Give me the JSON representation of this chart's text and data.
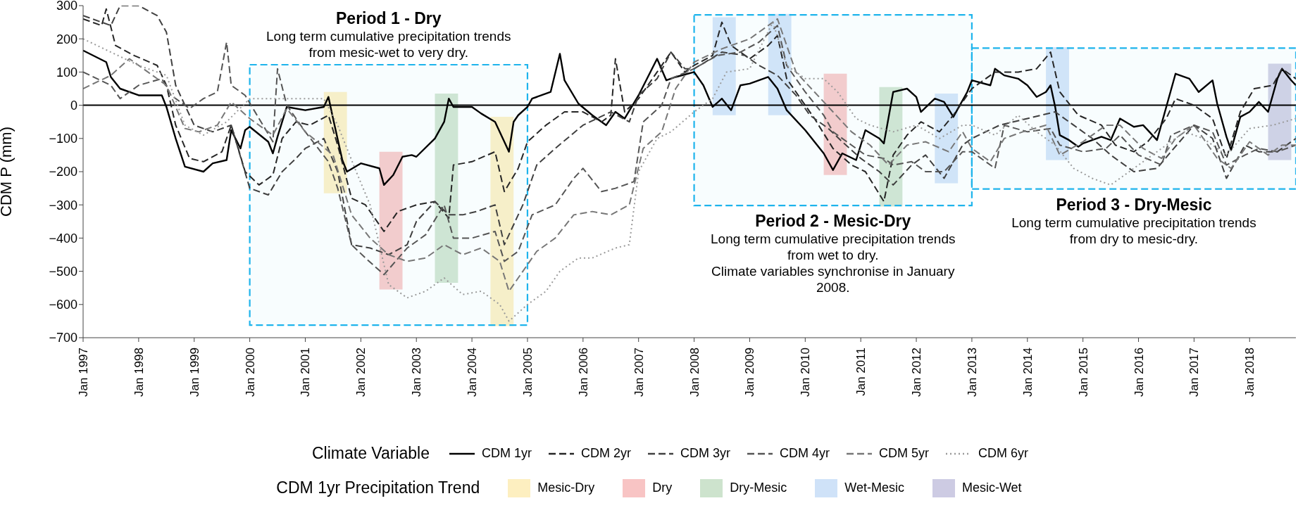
{
  "chart_data": {
    "type": "line",
    "ylabel": "CDM P (mm)",
    "legend_title": "Climate Variable",
    "legend": "bottom",
    "grid": false,
    "xlim": [
      "1997-01",
      "2018-11"
    ],
    "ylim": [
      -700,
      300
    ],
    "yticks": [
      -700,
      -600,
      -500,
      -400,
      -300,
      -200,
      -100,
      0,
      100,
      200,
      300
    ],
    "xticks": [
      {
        "value": "1997-01",
        "label": "Jan 1997"
      },
      {
        "value": "1998-01",
        "label": "Jan 1998"
      },
      {
        "value": "1999-01",
        "label": "Jan 1999"
      },
      {
        "value": "2000-01",
        "label": "Jan 2000"
      },
      {
        "value": "2001-01",
        "label": "Jan 2001"
      },
      {
        "value": "2002-01",
        "label": "Jan 2002"
      },
      {
        "value": "2003-01",
        "label": "Jan 2003"
      },
      {
        "value": "2004-01",
        "label": "Jan 2004"
      },
      {
        "value": "2005-01",
        "label": "Jan 2005"
      },
      {
        "value": "2006-01",
        "label": "Jan 2006"
      },
      {
        "value": "2007-01",
        "label": "Jan 2007"
      },
      {
        "value": "2008-01",
        "label": "Jan 2008"
      },
      {
        "value": "2009-01",
        "label": "Jan 2009"
      },
      {
        "value": "2010-01",
        "label": "Jan 2010"
      },
      {
        "value": "2011-01",
        "label": "Jan 2011"
      },
      {
        "value": "2012-01",
        "label": "Jan 2012"
      },
      {
        "value": "2013-01",
        "label": "Jan 2013"
      },
      {
        "value": "2014-01",
        "label": "Jan 2014"
      },
      {
        "value": "2015-01",
        "label": "Jan 2015"
      },
      {
        "value": "2016-01",
        "label": "Jan 2016"
      },
      {
        "value": "2017-01",
        "label": "Jan 2017"
      },
      {
        "value": "2018-01",
        "label": "Jan 2018"
      }
    ],
    "series": [
      {
        "name": "CDM 1yr",
        "color": "#000000",
        "line_style": "solid",
        "x": [
          "1997-01",
          "1997-06",
          "1997-07",
          "1997-09",
          "1998-01",
          "1998-06",
          "1998-07",
          "1998-09",
          "1998-11",
          "1999-03",
          "1999-05",
          "1999-08",
          "1999-09",
          "1999-11",
          "1999-12",
          "2000-01",
          "2000-05",
          "2000-06",
          "2000-07",
          "2000-09",
          "2001-01",
          "2001-05",
          "2001-06",
          "2001-07",
          "2001-09",
          "2001-10",
          "2002-01",
          "2002-05",
          "2002-06",
          "2002-08",
          "2002-10",
          "2002-12",
          "2003-01",
          "2003-05",
          "2003-07",
          "2003-08",
          "2003-09",
          "2004-01",
          "2004-03",
          "2004-06",
          "2004-08",
          "2004-09",
          "2004-10",
          "2004-11",
          "2005-01",
          "2005-02",
          "2005-06",
          "2005-08",
          "2005-09",
          "2005-12",
          "2006-03",
          "2006-06",
          "2006-08",
          "2006-10",
          "2007-01",
          "2007-05",
          "2007-07",
          "2007-09",
          "2008-01",
          "2008-03",
          "2008-05",
          "2008-07",
          "2008-09",
          "2008-11",
          "2009-01",
          "2009-05",
          "2009-07",
          "2009-09",
          "2010-01",
          "2010-05",
          "2010-07",
          "2010-09",
          "2010-12",
          "2011-02",
          "2011-05",
          "2011-06",
          "2011-08",
          "2011-11",
          "2012-01",
          "2012-02",
          "2012-05",
          "2012-07",
          "2012-09",
          "2012-12",
          "2013-01",
          "2013-05",
          "2013-06",
          "2013-08",
          "2013-11",
          "2014-01",
          "2014-03",
          "2014-05",
          "2014-06",
          "2014-07",
          "2014-08",
          "2014-10",
          "2014-12",
          "2015-01",
          "2015-05",
          "2015-07",
          "2015-09",
          "2015-12",
          "2016-02",
          "2016-05",
          "2016-07",
          "2016-09",
          "2016-12",
          "2017-02",
          "2017-05",
          "2017-06",
          "2017-08",
          "2017-09",
          "2017-11",
          "2018-01",
          "2018-03",
          "2018-05",
          "2018-07",
          "2018-08",
          "2018-10",
          "2018-11"
        ],
        "values": [
          165,
          130,
          85,
          50,
          30,
          30,
          -5,
          -100,
          -185,
          -200,
          -175,
          -165,
          -75,
          -130,
          -75,
          -65,
          -110,
          -145,
          -95,
          -5,
          -15,
          -5,
          25,
          -40,
          -165,
          -200,
          -175,
          -190,
          -240,
          -210,
          -155,
          -150,
          -155,
          -100,
          -50,
          20,
          -5,
          -5,
          -25,
          -50,
          -110,
          -140,
          -50,
          -30,
          -5,
          20,
          40,
          155,
          75,
          5,
          -30,
          -60,
          -20,
          -40,
          30,
          140,
          75,
          85,
          100,
          60,
          -5,
          20,
          -15,
          60,
          65,
          85,
          50,
          -15,
          -75,
          -145,
          -195,
          -145,
          -165,
          -75,
          -100,
          -115,
          40,
          50,
          25,
          -20,
          20,
          10,
          -35,
          40,
          75,
          60,
          110,
          90,
          80,
          60,
          25,
          40,
          60,
          -5,
          -90,
          -105,
          -125,
          -115,
          -95,
          -105,
          -40,
          -65,
          -60,
          -105,
          -5,
          95,
          80,
          40,
          75,
          5,
          -95,
          -135,
          -35,
          -20,
          10,
          -20,
          80,
          110,
          75,
          60
        ]
      },
      {
        "name": "CDM 2yr",
        "color": "#262626",
        "line_style": "dashed",
        "x": [
          "1997-01",
          "1997-05",
          "1997-06",
          "1997-08",
          "1997-12",
          "1998-05",
          "1998-07",
          "1998-09",
          "1998-12",
          "1999-03",
          "1999-07",
          "1999-09",
          "1999-12",
          "2000-03",
          "2000-06",
          "2000-08",
          "2000-11",
          "2001-02",
          "2001-06",
          "2001-08",
          "2001-11",
          "2002-02",
          "2002-06",
          "2002-09",
          "2003-01",
          "2003-05",
          "2003-08",
          "2003-09",
          "2004-01",
          "2004-06",
          "2004-08",
          "2004-11",
          "2005-01",
          "2005-05",
          "2005-09",
          "2006-01",
          "2006-05",
          "2006-07",
          "2006-08",
          "2006-10",
          "2007-01",
          "2007-05",
          "2007-08",
          "2007-11",
          "2008-01",
          "2008-05",
          "2008-07",
          "2008-09",
          "2009-01",
          "2009-05",
          "2009-07",
          "2009-09",
          "2009-12",
          "2010-03",
          "2010-07",
          "2010-11",
          "2011-02",
          "2011-06",
          "2011-08",
          "2011-11",
          "2012-02",
          "2012-06",
          "2012-09",
          "2013-01",
          "2013-06",
          "2013-11",
          "2014-03",
          "2014-06",
          "2014-08",
          "2014-12",
          "2015-05",
          "2015-08",
          "2015-12",
          "2016-03",
          "2016-07",
          "2016-09",
          "2017-01",
          "2017-05",
          "2017-08",
          "2017-11",
          "2018-02",
          "2018-06",
          "2018-08",
          "2018-11"
        ],
        "values": [
          260,
          240,
          290,
          180,
          150,
          120,
          60,
          -60,
          -160,
          -170,
          -140,
          -60,
          -200,
          -240,
          -210,
          -100,
          -50,
          -60,
          -30,
          -120,
          -280,
          -300,
          -380,
          -320,
          -300,
          -290,
          -340,
          -180,
          -170,
          -140,
          -260,
          -190,
          -110,
          -60,
          -20,
          -20,
          -50,
          -30,
          140,
          -20,
          20,
          100,
          160,
          100,
          120,
          150,
          250,
          180,
          140,
          180,
          210,
          80,
          20,
          -40,
          -130,
          -180,
          -200,
          -290,
          -150,
          -90,
          -50,
          -80,
          -30,
          50,
          100,
          100,
          110,
          160,
          40,
          -30,
          -60,
          -120,
          -140,
          -110,
          -40,
          20,
          0,
          -40,
          -160,
          -20,
          50,
          60,
          110,
          80
        ]
      },
      {
        "name": "CDM 3yr",
        "color": "#404040",
        "line_style": "dashed",
        "x": [
          "1997-01",
          "1997-07",
          "1997-09",
          "1998-01",
          "1998-05",
          "1998-07",
          "1998-09",
          "1999-01",
          "1999-05",
          "1999-09",
          "2000-01",
          "2000-05",
          "2000-08",
          "2000-11",
          "2001-01",
          "2001-05",
          "2001-08",
          "2001-11",
          "2002-03",
          "2002-07",
          "2002-11",
          "2003-01",
          "2003-05",
          "2003-08",
          "2003-11",
          "2004-02",
          "2004-06",
          "2004-08",
          "2004-12",
          "2005-03",
          "2005-07",
          "2006-01",
          "2006-07",
          "2006-11",
          "2007-01",
          "2007-05",
          "2007-08",
          "2007-11",
          "2008-01",
          "2008-07",
          "2008-12",
          "2009-03",
          "2009-07",
          "2009-11",
          "2010-02",
          "2010-06",
          "2010-09",
          "2011-01",
          "2011-05",
          "2011-08",
          "2011-12",
          "2012-03",
          "2012-07",
          "2012-11",
          "2013-01",
          "2013-07",
          "2014-01",
          "2014-07",
          "2014-11",
          "2015-03",
          "2015-07",
          "2015-12",
          "2016-05",
          "2016-08",
          "2017-01",
          "2017-05",
          "2017-08",
          "2017-12",
          "2018-03",
          "2018-07",
          "2018-11"
        ],
        "values": [
          270,
          240,
          300,
          300,
          270,
          220,
          60,
          -60,
          -80,
          -60,
          -250,
          -270,
          -200,
          -160,
          -130,
          -100,
          -200,
          -420,
          -430,
          -450,
          -420,
          -350,
          -290,
          -330,
          -330,
          -320,
          -300,
          -420,
          -300,
          -180,
          -130,
          -60,
          -20,
          -50,
          30,
          80,
          160,
          110,
          110,
          160,
          150,
          120,
          90,
          30,
          -30,
          -70,
          -110,
          -160,
          -200,
          -240,
          -180,
          -150,
          -220,
          -120,
          -100,
          -60,
          -40,
          -20,
          -60,
          -100,
          -150,
          -200,
          -190,
          -140,
          -60,
          -100,
          -220,
          -120,
          -140,
          -140,
          -100
        ]
      },
      {
        "name": "CDM 4yr",
        "color": "#555555",
        "line_style": "dashed",
        "x": [
          "1997-01",
          "1997-07",
          "1997-09",
          "1998-01",
          "1998-06",
          "1998-08",
          "1998-12",
          "1999-03",
          "1999-06",
          "1999-08",
          "1999-09",
          "1999-12",
          "2000-03",
          "2000-06",
          "2000-07",
          "2000-09",
          "2001-01",
          "2001-06",
          "2001-08",
          "2001-11",
          "2002-02",
          "2002-06",
          "2002-11",
          "2003-03",
          "2003-07",
          "2003-09",
          "2004-01",
          "2004-06",
          "2004-08",
          "2004-11",
          "2005-02",
          "2005-07",
          "2005-11",
          "2006-01",
          "2006-05",
          "2006-08",
          "2006-12",
          "2007-02",
          "2007-06",
          "2007-08",
          "2008-01",
          "2008-06",
          "2008-11",
          "2009-03",
          "2009-07",
          "2009-09",
          "2010-01",
          "2010-05",
          "2010-07",
          "2010-11",
          "2011-02",
          "2011-06",
          "2011-08",
          "2011-12",
          "2012-03",
          "2012-07",
          "2012-11",
          "2013-01",
          "2013-06",
          "2013-08",
          "2014-01",
          "2014-06",
          "2014-08",
          "2015-01",
          "2015-06",
          "2015-09",
          "2016-01",
          "2016-06",
          "2016-08",
          "2017-01",
          "2017-05",
          "2017-08",
          "2017-12",
          "2018-03",
          "2018-07",
          "2018-11"
        ],
        "values": [
          100,
          60,
          20,
          60,
          80,
          30,
          -10,
          20,
          40,
          190,
          60,
          30,
          -40,
          -110,
          110,
          0,
          -80,
          -170,
          -250,
          -420,
          -460,
          -510,
          -430,
          -390,
          -300,
          -400,
          -400,
          -380,
          -470,
          -440,
          -330,
          -300,
          -220,
          -190,
          -260,
          -250,
          -230,
          -50,
          0,
          80,
          110,
          150,
          160,
          190,
          240,
          120,
          40,
          -30,
          -80,
          -120,
          -150,
          -160,
          -180,
          -170,
          -200,
          -200,
          -140,
          -140,
          -190,
          -60,
          -80,
          -70,
          -120,
          -140,
          -130,
          -90,
          -150,
          -180,
          -90,
          -60,
          -80,
          -180,
          -150,
          -130,
          -140,
          -120
        ]
      },
      {
        "name": "CDM 5yr",
        "color": "#777777",
        "line_style": "dashed",
        "x": [
          "1997-01",
          "1997-07",
          "1997-11",
          "1998-03",
          "1998-07",
          "1998-11",
          "1999-02",
          "1999-06",
          "1999-09",
          "2000-01",
          "2000-06",
          "2000-09",
          "2001-01",
          "2001-07",
          "2001-11",
          "2002-03",
          "2002-07",
          "2002-11",
          "2003-03",
          "2003-07",
          "2003-11",
          "2004-03",
          "2004-07",
          "2004-09",
          "2004-12",
          "2005-03",
          "2005-07",
          "2005-11",
          "2006-03",
          "2006-07",
          "2006-11",
          "2007-02",
          "2007-06",
          "2007-09",
          "2008-01",
          "2008-07",
          "2009-01",
          "2009-07",
          "2009-11",
          "2010-03",
          "2010-07",
          "2010-11",
          "2011-03",
          "2011-07",
          "2011-11",
          "2012-03",
          "2012-08",
          "2012-11",
          "2013-01",
          "2013-05",
          "2013-08",
          "2013-12",
          "2014-05",
          "2014-08",
          "2015-01",
          "2015-06",
          "2015-09",
          "2016-02",
          "2016-06",
          "2016-09",
          "2017-01",
          "2017-06",
          "2017-09",
          "2018-01",
          "2018-05",
          "2018-08",
          "2018-11"
        ],
        "values": [
          50,
          90,
          140,
          100,
          60,
          -70,
          -80,
          -60,
          10,
          -40,
          -90,
          -10,
          -80,
          -150,
          -330,
          -400,
          -450,
          -470,
          -460,
          -420,
          -450,
          -430,
          -470,
          -560,
          -500,
          -440,
          -400,
          -330,
          -320,
          -330,
          -300,
          -130,
          -80,
          50,
          130,
          170,
          200,
          260,
          100,
          40,
          -20,
          -80,
          -120,
          -180,
          -120,
          -110,
          -140,
          -80,
          -130,
          -170,
          -100,
          -80,
          -60,
          -150,
          -110,
          -60,
          -60,
          -130,
          -160,
          -100,
          -60,
          -160,
          -190,
          -110,
          -150,
          -120,
          -120
        ]
      },
      {
        "name": "CDM 6yr",
        "color": "#9a9a9a",
        "line_style": "dotted",
        "x": [
          "1997-01",
          "1997-07",
          "1998-01",
          "1998-07",
          "1998-11",
          "1999-03",
          "1999-08",
          "2000-01",
          "2000-07",
          "2001-01",
          "2001-05",
          "2001-08",
          "2001-12",
          "2002-03",
          "2002-07",
          "2002-11",
          "2003-03",
          "2003-07",
          "2003-11",
          "2004-03",
          "2004-07",
          "2004-09",
          "2005-01",
          "2005-05",
          "2005-08",
          "2005-12",
          "2006-03",
          "2006-08",
          "2006-11",
          "2007-01",
          "2007-05",
          "2007-08",
          "2008-01",
          "2008-05",
          "2008-08",
          "2009-01",
          "2009-06",
          "2009-09",
          "2010-01",
          "2010-05",
          "2010-08",
          "2010-12",
          "2011-03",
          "2011-08",
          "2012-01",
          "2012-06",
          "2012-11",
          "2013-01",
          "2013-06",
          "2013-11",
          "2014-03",
          "2014-07",
          "2014-11",
          "2015-03",
          "2015-07",
          "2015-11",
          "2016-02",
          "2016-07",
          "2016-11",
          "2017-03",
          "2017-08",
          "2018-01",
          "2018-06",
          "2018-11"
        ],
        "values": [
          200,
          160,
          120,
          90,
          -60,
          -90,
          -50,
          20,
          20,
          20,
          20,
          -60,
          -200,
          -300,
          -540,
          -580,
          -560,
          -520,
          -570,
          -560,
          -600,
          -650,
          -600,
          -560,
          -500,
          -460,
          -460,
          -430,
          -420,
          -200,
          -100,
          -80,
          -20,
          20,
          100,
          110,
          250,
          120,
          80,
          80,
          40,
          -40,
          -60,
          -80,
          -60,
          -100,
          -60,
          -60,
          -90,
          -30,
          -80,
          -120,
          -190,
          -220,
          -240,
          -200,
          -170,
          -120,
          -80,
          -100,
          -150,
          -70,
          -60,
          -40
        ]
      }
    ],
    "ref_lines": [
      {
        "axis": "y",
        "value": 0,
        "color": "#000000"
      }
    ],
    "bands": [
      {
        "axis": "x",
        "from": "2001-05",
        "to": "2001-10",
        "label": "Mesic-Dry",
        "color": "#fdefc0"
      },
      {
        "axis": "x",
        "from": "2002-05",
        "to": "2002-10",
        "label": "Dry",
        "color": "#f8c4c4"
      },
      {
        "axis": "x",
        "from": "2003-05",
        "to": "2003-10",
        "label": "Dry-Mesic",
        "color": "#cde3cd"
      },
      {
        "axis": "x",
        "from": "2004-05",
        "to": "2004-10",
        "color": "#fdefc0"
      },
      {
        "axis": "x",
        "from": "2008-05",
        "to": "2008-10",
        "label": "Wet-Mesic",
        "color": "#cfe2f8"
      },
      {
        "axis": "x",
        "from": "2009-05",
        "to": "2009-10",
        "color": "#cfe2f8"
      },
      {
        "axis": "x",
        "from": "2010-05",
        "to": "2010-10",
        "color": "#f8c4c4"
      },
      {
        "axis": "x",
        "from": "2011-05",
        "to": "2011-10",
        "color": "#cde3cd"
      },
      {
        "axis": "x",
        "from": "2012-05",
        "to": "2012-10",
        "color": "#cfe2f8"
      },
      {
        "axis": "x",
        "from": "2014-05",
        "to": "2014-10",
        "color": "#cfe2f8"
      },
      {
        "axis": "x",
        "from": "2018-05",
        "to": "2018-10",
        "label": "Mesic-Wet",
        "color": "#cdcbe3"
      },
      {
        "axis": "x",
        "from": "2000-01",
        "to": "2005-01",
        "label": "Period 1 - Dry",
        "color": "#1eb4ec"
      },
      {
        "axis": "x",
        "from": "2008-01",
        "to": "2013-01",
        "label": "Period 2 - Mesic-Dry",
        "color": "#1eb4ec"
      },
      {
        "axis": "x",
        "from": "2013-01",
        "to": "2018-11",
        "label": "Period 3 - Dry-Mesic",
        "color": "#1eb4ec"
      }
    ],
    "annotations": [
      "Long term cumulative precipitation trends from mesic-wet to very dry.",
      "Long term cumulative precipitation trends from wet to dry.\nClimate variables synchronise in January 2008.",
      "Long term cumulative precipitation trends from dry to mesic-dry.",
      "CDM 1yr Precipitation Trend"
    ]
  }
}
